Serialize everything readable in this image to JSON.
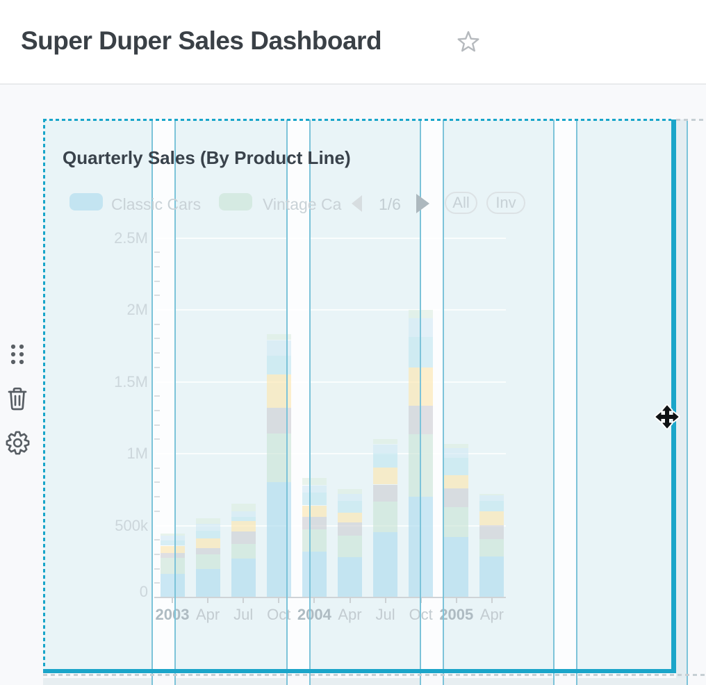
{
  "header": {
    "title": "Super Duper Sales Dashboard",
    "favorite_icon": "star-outline"
  },
  "toolbar": {
    "items": [
      {
        "icon": "drag-handle-icon"
      },
      {
        "icon": "trash-icon"
      },
      {
        "icon": "settings-gear-icon"
      }
    ]
  },
  "card": {
    "legend": {
      "pager": {
        "label": "1/6",
        "prev_icon": "chevron-left",
        "next_icon": "chevron-right"
      },
      "filters": [
        {
          "label": "All"
        },
        {
          "label": "Inv"
        }
      ]
    }
  },
  "cursor": {
    "icon": "move-cursor"
  },
  "colors": {
    "accent_border": "#18a5c9",
    "solid_edge": "#1ba5c9",
    "grid_column_line": "#7cc3d9",
    "card_tint": "#e9f4f7",
    "column_gap_white": "#fcfdfe",
    "grid_cell_below": "#e7eef1",
    "right_strip": "#e4edf1",
    "page_bg": "#f8f9fb",
    "header_bg": "#ffffff",
    "dashed_preview_gray": "#c6cfd4",
    "axis_line": "#cfd3d6",
    "icon_gray": "#575d63",
    "star_gray": "#b5b9bd"
  },
  "chart_data": {
    "type": "bar",
    "stacked": true,
    "title": "Quarterly Sales (By Product Line)",
    "categories": [
      "2003",
      "Apr",
      "Jul",
      "Oct",
      "2004",
      "Apr",
      "Jul",
      "Oct",
      "2005",
      "Apr"
    ],
    "xlabel": "",
    "ylabel": "",
    "ylim": [
      0,
      2500000
    ],
    "grid": true,
    "legend_position": "top",
    "y_axis": {
      "tick_labels": [
        "0",
        "500k",
        "1M",
        "1.5M",
        "2M",
        "2.5M"
      ],
      "tick_values": [
        0,
        500000,
        1000000,
        1500000,
        2000000,
        2500000
      ]
    },
    "series": [
      {
        "name": "Classic Cars",
        "color": "rgba(171,218,238,0.62)",
        "values": [
          165000,
          200000,
          270000,
          800000,
          320000,
          280000,
          455000,
          700000,
          420000,
          285000
        ]
      },
      {
        "name": "Vintage Ca",
        "color": "rgba(200,227,212,0.60)",
        "values": [
          110000,
          100000,
          100000,
          340000,
          155000,
          150000,
          210000,
          435000,
          210000,
          120000
        ]
      },
      {
        "name": "",
        "color": "rgba(203,203,208,0.60)",
        "values": [
          35000,
          45000,
          90000,
          180000,
          85000,
          90000,
          120000,
          200000,
          130000,
          97000
        ]
      },
      {
        "name": "",
        "color": "rgba(252,231,177,0.65)",
        "values": [
          50000,
          65000,
          70000,
          230000,
          80000,
          70000,
          120000,
          265000,
          90000,
          97000
        ]
      },
      {
        "name": "",
        "color": "rgba(190,228,238,0.60)",
        "values": [
          35000,
          55000,
          30000,
          130000,
          90000,
          80000,
          100000,
          210000,
          120000,
          72000
        ]
      },
      {
        "name": "",
        "color": "rgba(208,232,243,0.60)",
        "values": [
          35000,
          45000,
          40000,
          110000,
          50000,
          50000,
          60000,
          130000,
          70000,
          39000
        ]
      },
      {
        "name": "",
        "color": "rgba(220,237,223,0.60)",
        "values": [
          15000,
          40000,
          50000,
          40000,
          50000,
          35000,
          35000,
          60000,
          30000,
          10000
        ]
      }
    ]
  }
}
